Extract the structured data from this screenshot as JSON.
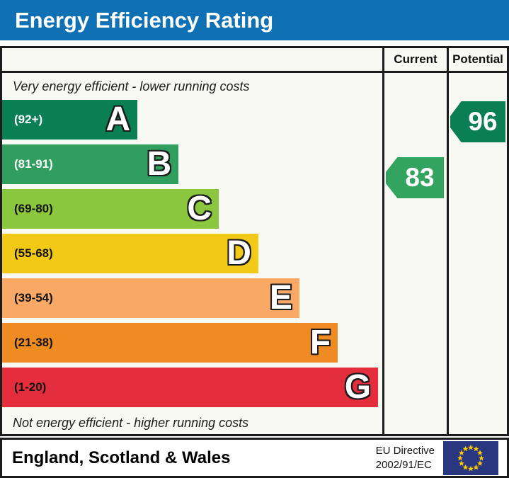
{
  "title_bar": {
    "title": "Energy Efficiency Rating"
  },
  "table": {
    "current_header": "Current",
    "potential_header": "Potential"
  },
  "captions": {
    "top": "Very energy efficient - lower running costs",
    "bottom": "Not energy efficient - higher running costs"
  },
  "chart_data": {
    "type": "bar",
    "title": "Energy Efficiency Rating",
    "bands": [
      {
        "letter": "A",
        "range": "(92+)",
        "min": 92,
        "max": 100,
        "color": "#0b7f54",
        "label_color": "#ffffff",
        "width_pct": 35.6
      },
      {
        "letter": "B",
        "range": "(81-91)",
        "min": 81,
        "max": 91,
        "color": "#2f9e5f",
        "label_color": "#ffffff",
        "width_pct": 46.4
      },
      {
        "letter": "C",
        "range": "(69-80)",
        "min": 69,
        "max": 80,
        "color": "#8bc63f",
        "label_color": "#111111",
        "width_pct": 57.0
      },
      {
        "letter": "D",
        "range": "(55-68)",
        "min": 55,
        "max": 68,
        "color": "#f3c918",
        "label_color": "#111111",
        "width_pct": 67.4
      },
      {
        "letter": "E",
        "range": "(39-54)",
        "min": 39,
        "max": 54,
        "color": "#f9a865",
        "label_color": "#111111",
        "width_pct": 78.2
      },
      {
        "letter": "F",
        "range": "(21-38)",
        "min": 21,
        "max": 38,
        "color": "#ef8b23",
        "label_color": "#111111",
        "width_pct": 88.3
      },
      {
        "letter": "G",
        "range": "(1-20)",
        "min": 1,
        "max": 20,
        "color": "#e42d3d",
        "label_color": "#111111",
        "width_pct": 98.9
      }
    ],
    "current": {
      "value": 83,
      "band": "B",
      "color": "#33a45f"
    },
    "potential": {
      "value": 96,
      "band": "A",
      "color": "#0b7f54"
    }
  },
  "footer": {
    "region": "England, Scotland & Wales",
    "directive_line1": "EU Directive",
    "directive_line2": "2002/91/EC"
  },
  "colors": {
    "title_bar_bg": "#0f70b4",
    "chart_bg": "#f9f9f4",
    "border": "#1c1c1c",
    "flag_bg": "#293780",
    "flag_star": "#ffcc00"
  }
}
